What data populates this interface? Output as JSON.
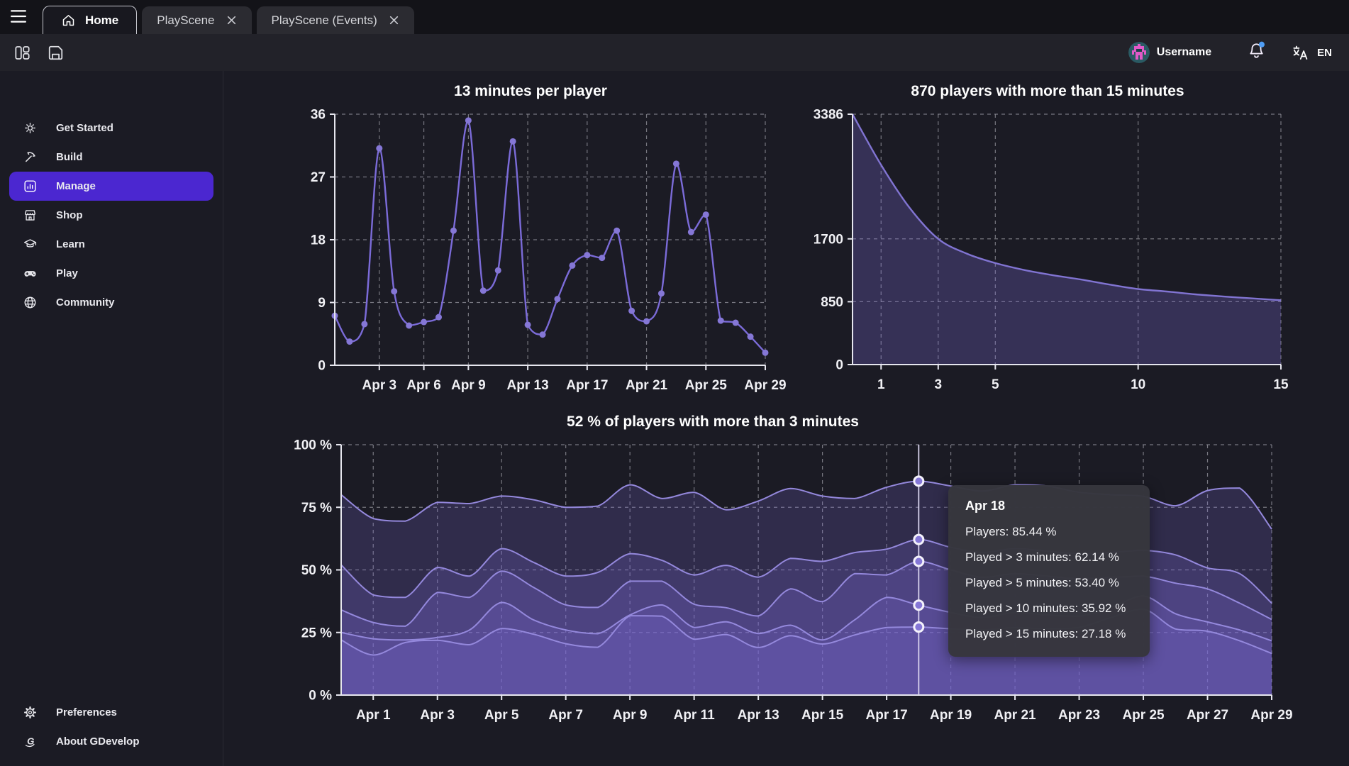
{
  "tab_bar": {
    "tabs": [
      {
        "label": "Home",
        "active": true
      },
      {
        "label": "PlayScene",
        "active": false,
        "closable": true
      },
      {
        "label": "PlayScene (Events)",
        "active": false,
        "closable": true
      }
    ]
  },
  "toolbar": {
    "icons": [
      "panels-icon",
      "save-icon"
    ]
  },
  "user_bar": {
    "username": "Username",
    "language": "EN",
    "icons": [
      "avatar",
      "bell-icon",
      "translate-icon"
    ],
    "has_notification": true
  },
  "sidebar": {
    "items": [
      {
        "label": "Get Started",
        "icon": "sun-icon",
        "selected": false
      },
      {
        "label": "Build",
        "icon": "pickaxe-icon",
        "selected": false
      },
      {
        "label": "Manage",
        "icon": "bar-chart-icon",
        "selected": true
      },
      {
        "label": "Shop",
        "icon": "storefront-icon",
        "selected": false
      },
      {
        "label": "Learn",
        "icon": "graduation-cap-icon",
        "selected": false
      },
      {
        "label": "Play",
        "icon": "gamepad-icon",
        "selected": false
      },
      {
        "label": "Community",
        "icon": "globe-icon",
        "selected": false
      }
    ],
    "footer_items": [
      {
        "label": "Preferences",
        "icon": "gear-icon"
      },
      {
        "label": "About GDevelop",
        "icon": "gdevelop-logo-icon"
      }
    ]
  },
  "colors": {
    "accent": "#4b27d0",
    "page_bg": "#1b1b24",
    "tab_bar_bg": "#131318",
    "toolbar_bg": "#222229",
    "line": "#7b6bd8",
    "dot": "#8577d6",
    "area_line": "#8174d2",
    "area_fill": "rgba(124,108,214,0.28)",
    "multi_line": "#9488dc",
    "multi_area_fill": "rgba(124,106,214,0.22)",
    "grid": "#8f8f98",
    "axis": "#e6e6ee",
    "tick_text": "#f1f1f5",
    "title_text": "#ffffff",
    "tooltip_bg": "#36363d",
    "notification_dot": "#4f9df4",
    "hover_line": "#d9d4ee"
  },
  "chart_data": [
    {
      "id": "minutes-per-player",
      "type": "line",
      "title": "13 minutes per player",
      "x_ticks": [
        {
          "index": 3,
          "label": "Apr 3"
        },
        {
          "index": 6,
          "label": "Apr 6"
        },
        {
          "index": 9,
          "label": "Apr 9"
        },
        {
          "index": 13,
          "label": "Apr 13"
        },
        {
          "index": 17,
          "label": "Apr 17"
        },
        {
          "index": 21,
          "label": "Apr 21"
        },
        {
          "index": 25,
          "label": "Apr 25"
        },
        {
          "index": 29,
          "label": "Apr 29"
        }
      ],
      "y_ticks": [
        0,
        9,
        18,
        27,
        36
      ],
      "y_max": 36,
      "grid": true,
      "values": [
        7.1,
        3.4,
        5.9,
        31.1,
        10.6,
        5.7,
        6.2,
        6.9,
        19.3,
        35.1,
        10.7,
        13.6,
        32.1,
        5.8,
        4.4,
        9.5,
        14.3,
        15.8,
        15.4,
        19.3,
        7.8,
        6.3,
        10.3,
        28.9,
        19.1,
        21.6,
        6.4,
        6.1,
        4.1,
        1.8
      ]
    },
    {
      "id": "players-with-more-than-15-minutes",
      "type": "area",
      "title": "870 players with more than 15 minutes",
      "x_ticks": [
        1,
        3,
        5,
        10,
        15
      ],
      "x_max": 15,
      "y_ticks": [
        0,
        850,
        1700,
        3386
      ],
      "y_max": 3386,
      "grid": true,
      "x_values": [
        0,
        1,
        2,
        3,
        4,
        5,
        6,
        7,
        8,
        9,
        10,
        11,
        12,
        13,
        14,
        15
      ],
      "values": [
        3386,
        2700,
        2120,
        1700,
        1500,
        1373,
        1280,
        1210,
        1150,
        1082,
        1022,
        988,
        950,
        920,
        895,
        870
      ]
    },
    {
      "id": "percent-players-retention",
      "type": "multi_area",
      "title": "52 % of players with more than 3 minutes",
      "x_ticks": [
        {
          "index": 1,
          "label": "Apr 1"
        },
        {
          "index": 3,
          "label": "Apr 3"
        },
        {
          "index": 5,
          "label": "Apr 5"
        },
        {
          "index": 7,
          "label": "Apr 7"
        },
        {
          "index": 9,
          "label": "Apr 9"
        },
        {
          "index": 11,
          "label": "Apr 11"
        },
        {
          "index": 13,
          "label": "Apr 13"
        },
        {
          "index": 15,
          "label": "Apr 15"
        },
        {
          "index": 17,
          "label": "Apr 17"
        },
        {
          "index": 19,
          "label": "Apr 19"
        },
        {
          "index": 21,
          "label": "Apr 21"
        },
        {
          "index": 23,
          "label": "Apr 23"
        },
        {
          "index": 25,
          "label": "Apr 25"
        },
        {
          "index": 27,
          "label": "Apr 27"
        },
        {
          "index": 29,
          "label": "Apr 29"
        }
      ],
      "y_ticks": [
        {
          "value": 0,
          "label": "0 %"
        },
        {
          "value": 25,
          "label": "25 %"
        },
        {
          "value": 50,
          "label": "50 %"
        },
        {
          "value": 75,
          "label": "75 %"
        },
        {
          "value": 100,
          "label": "100 %"
        }
      ],
      "y_max": 100,
      "grid": true,
      "series": [
        {
          "name": "Players",
          "values": [
            80,
            70.5,
            69.5,
            77,
            76.5,
            79.5,
            78,
            75,
            75.5,
            84,
            78.5,
            81,
            74,
            77.5,
            82.5,
            79.5,
            78.5,
            83,
            85.44,
            83.5,
            81.5,
            84,
            83.5,
            81,
            80,
            79.4,
            75.6,
            81.7,
            82.7,
            66.3
          ]
        },
        {
          "name": "Played > 3 minutes",
          "values": [
            52,
            40,
            39,
            51,
            47.5,
            58.5,
            53,
            47.5,
            49,
            56.5,
            53.8,
            48,
            51.8,
            47.1,
            54.6,
            53.4,
            56.9,
            58.3,
            62.14,
            59,
            57,
            58.5,
            57.5,
            56.5,
            57,
            57.8,
            56,
            50.8,
            48.5,
            36.7
          ]
        },
        {
          "name": "Played > 5 minutes",
          "values": [
            34,
            29,
            27.5,
            41,
            39,
            49.5,
            43,
            36,
            35,
            45.5,
            45.5,
            36.3,
            34.9,
            31.6,
            42.4,
            37.3,
            48.5,
            48,
            53.4,
            50,
            47,
            48.5,
            47.5,
            46.5,
            47,
            47.5,
            44.7,
            42.4,
            36.7,
            30.2
          ]
        },
        {
          "name": "Played > 10 minutes",
          "values": [
            25,
            22.5,
            22,
            23,
            26,
            37,
            30,
            26,
            24.5,
            32,
            36,
            27,
            29.3,
            24.6,
            27.9,
            22,
            30,
            39,
            35.92,
            33,
            31,
            33,
            32,
            31.5,
            35,
            39.6,
            32.5,
            29.2,
            26,
            21.7
          ]
        },
        {
          "name": "Played > 15 minutes",
          "values": [
            22,
            16,
            21,
            21.9,
            20.1,
            26.6,
            24.3,
            20.5,
            19.1,
            31.7,
            31.5,
            22.3,
            24.2,
            19,
            23.7,
            20.4,
            24,
            27,
            27.18,
            26.5,
            26,
            27,
            26.5,
            27,
            31,
            34.4,
            26.4,
            25.5,
            21.7,
            16.6
          ]
        }
      ],
      "hover": {
        "index": 18,
        "date": "Apr 18",
        "values": [
          85.44,
          62.14,
          53.4,
          35.92,
          27.18
        ],
        "rows": [
          "Players: 85.44 %",
          "Played > 3 minutes: 62.14 %",
          "Played > 5 minutes: 53.40 %",
          "Played > 10 minutes: 35.92 %",
          "Played > 15 minutes: 27.18 %"
        ]
      }
    }
  ]
}
